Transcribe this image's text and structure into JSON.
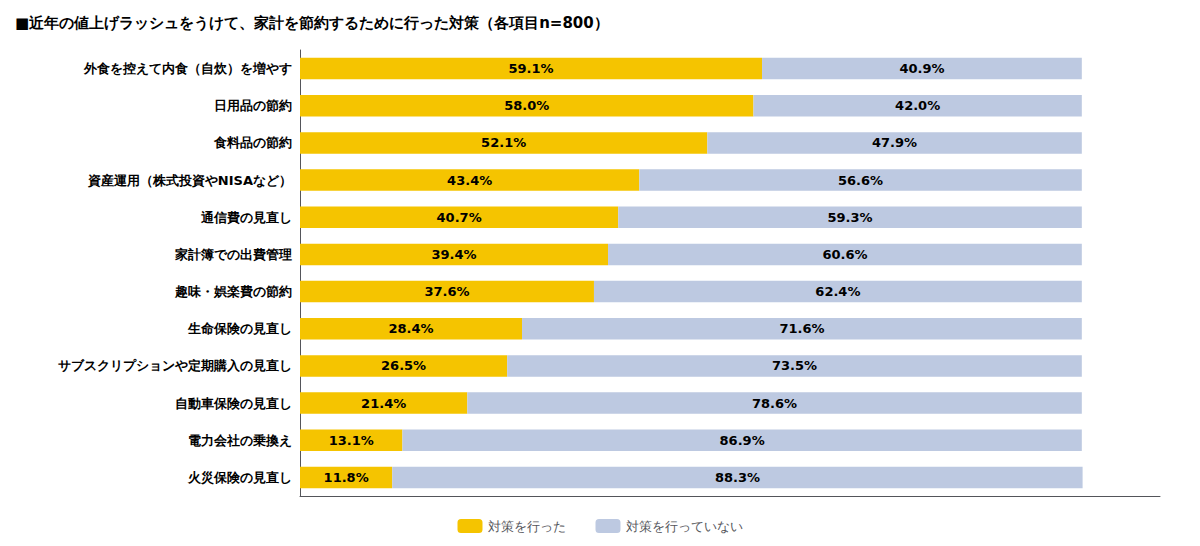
{
  "chart_data": {
    "type": "bar",
    "title": "■近年の値上げラッシュをうけて、家計を節約するために行った対策（各項目n=800）",
    "orientation": "horizontal",
    "stacked": true,
    "categories": [
      "外食を控えて内食（自炊）を増やす",
      "日用品の節約",
      "食料品の節約",
      "資産運用（株式投資やNISAなど）",
      "通信費の見直し",
      "家計簿での出費管理",
      "趣味・娯楽費の節約",
      "生命保険の見直し",
      "サブスクリプションや定期購入の見直し",
      "自動車保険の見直し",
      "電力会社の乗換え",
      "火災保険の見直し"
    ],
    "series": [
      {
        "name": "対策を行った",
        "color": "#F5C400",
        "values": [
          59.1,
          58.0,
          52.1,
          43.4,
          40.7,
          39.4,
          37.6,
          28.4,
          26.5,
          21.4,
          13.1,
          11.8
        ],
        "value_labels": [
          "59.1%",
          "58.0%",
          "52.1%",
          "43.4%",
          "40.7%",
          "39.4%",
          "37.6%",
          "28.4%",
          "26.5%",
          "21.4%",
          "13.1%",
          "11.8%"
        ]
      },
      {
        "name": "対策を行っていない",
        "color": "#BDC9E1",
        "values": [
          40.9,
          42.0,
          47.9,
          56.6,
          59.3,
          60.6,
          62.4,
          71.6,
          73.5,
          78.6,
          86.9,
          88.3
        ],
        "value_labels": [
          "40.9%",
          "42.0%",
          "47.9%",
          "56.6%",
          "59.3%",
          "60.6%",
          "62.4%",
          "71.6%",
          "73.5%",
          "78.6%",
          "86.9%",
          "88.3%"
        ]
      }
    ],
    "xlim": [
      0,
      110
    ],
    "data_labels": true,
    "grid": false,
    "legend": "bottom",
    "tick_labels": "y"
  }
}
